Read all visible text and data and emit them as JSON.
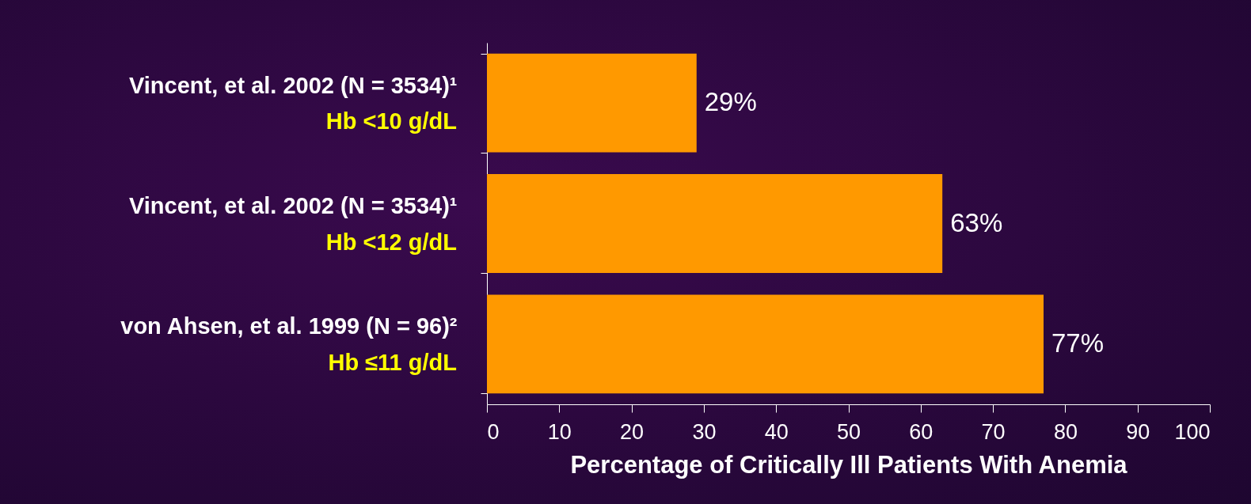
{
  "chart_data": {
    "type": "bar",
    "orientation": "horizontal",
    "categories": [
      "Vincent, et al. 2002 (N = 3534)¹\nHb <10 g/dL",
      "Vincent, et al. 2002 (N = 3534)¹\nHb <12 g/dL",
      "von Ahsen, et al. 1999 (N = 96)²\nHb ≤11 g/dL"
    ],
    "values": [
      29,
      63,
      77
    ],
    "value_labels": [
      "29%",
      "63%",
      "77%"
    ],
    "color": "#ff9900",
    "xlabel": "Percentage of Critically Ill Patients With Anemia",
    "xlim": [
      0,
      100
    ],
    "xticks": [
      0,
      10,
      20,
      30,
      40,
      50,
      60,
      70,
      80,
      90,
      100
    ],
    "grid": false
  }
}
